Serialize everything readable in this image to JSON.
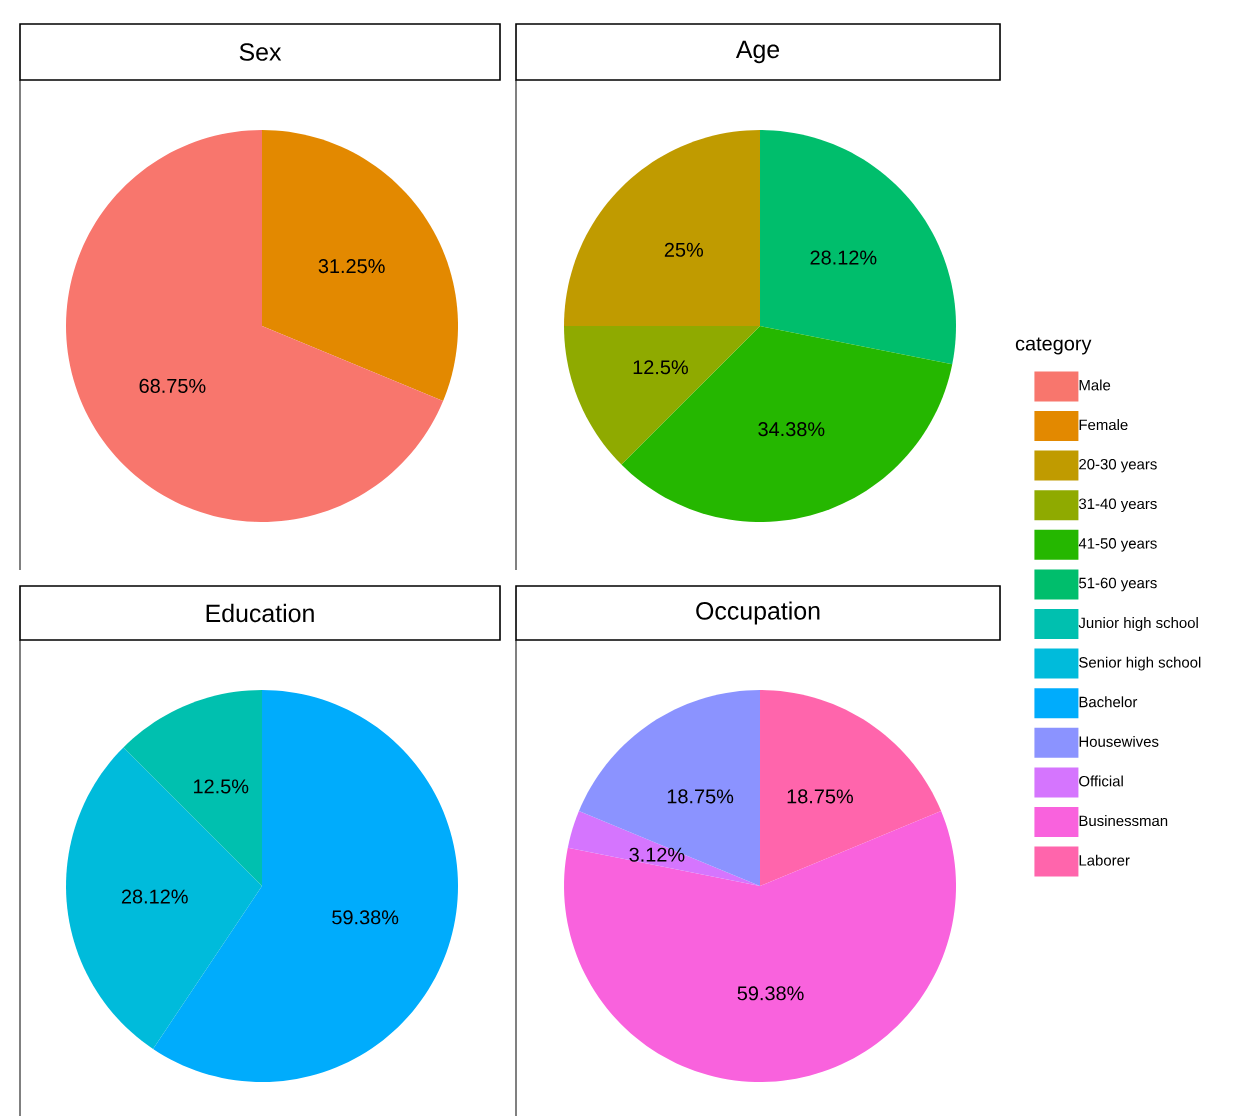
{
  "chart_data": [
    {
      "type": "pie",
      "title": "Sex",
      "legend_title": "category",
      "legend": "right",
      "categories": [
        "Male",
        "Female"
      ],
      "values": [
        68.75,
        31.25
      ],
      "colors": [
        "#f8766d",
        "#e38900"
      ],
      "value_labels": [
        "68.75%",
        "31.25%"
      ]
    },
    {
      "type": "pie",
      "title": "Age",
      "legend": "right",
      "categories": [
        "20-30 years",
        "31-40 years",
        "41-50 years",
        "51-60 years"
      ],
      "values": [
        25,
        12.5,
        34.38,
        28.12
      ],
      "colors": [
        "#c09b00",
        "#8faa00",
        "#25b700",
        "#00be6c"
      ],
      "value_labels": [
        "25%",
        "12.5%",
        "34.38%",
        "28.12%"
      ]
    },
    {
      "type": "pie",
      "title": "Education",
      "legend": "right",
      "categories": [
        "Junior high school",
        "Senior high school",
        "Bachelor"
      ],
      "values": [
        12.5,
        28.12,
        59.38
      ],
      "colors": [
        "#00c0af",
        "#00bbdb",
        "#00acfc"
      ],
      "value_labels": [
        "12.5%",
        "28.12%",
        "59.38%"
      ]
    },
    {
      "type": "pie",
      "title": "Occupation",
      "legend": "right",
      "categories": [
        "Housewives",
        "Official",
        "Businessman",
        "Laborer"
      ],
      "values": [
        18.75,
        3.12,
        59.38,
        18.75
      ],
      "colors": [
        "#8b93ff",
        "#d575fe",
        "#f962dd",
        "#ff65ac"
      ],
      "value_labels": [
        "18.75%",
        "3.12%",
        "59.38%",
        "18.75%"
      ]
    }
  ]
}
